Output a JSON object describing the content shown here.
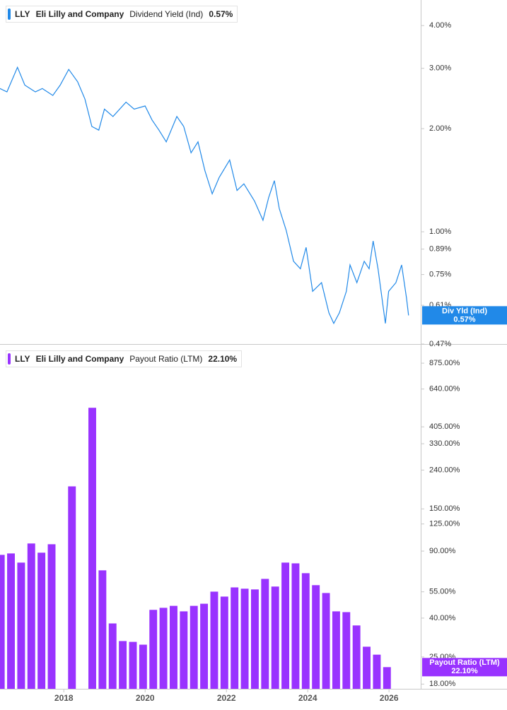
{
  "chart_data": [
    {
      "type": "line",
      "ticker": "LLY",
      "company": "Eli Lilly and Company",
      "current_label": "0.57%",
      "tag_label": "Div Yld (Ind)",
      "yscale": "log",
      "xlim": [
        2016.43,
        2026.78
      ],
      "ylim": [
        0.47,
        4.75
      ],
      "yticks": [
        {
          "value": 4,
          "label": "4.00%"
        },
        {
          "value": 3,
          "label": "3.00%"
        },
        {
          "value": 2,
          "label": "2.00%"
        },
        {
          "value": 1,
          "label": "1.00%"
        },
        {
          "value": 0.89,
          "label": "0.89%"
        },
        {
          "value": 0.75,
          "label": "0.75%"
        },
        {
          "value": 0.61,
          "label": "0.61%"
        },
        {
          "value": 0.47,
          "label": "0.47%"
        }
      ],
      "x": [
        2016.43,
        2016.6,
        2016.86,
        2017.04,
        2017.3,
        2017.47,
        2017.73,
        2017.91,
        2018.12,
        2018.34,
        2018.52,
        2018.69,
        2018.86,
        2019.0,
        2019.21,
        2019.53,
        2019.73,
        2020.0,
        2020.17,
        2020.34,
        2020.52,
        2020.78,
        2020.95,
        2021.13,
        2021.3,
        2021.47,
        2021.65,
        2021.82,
        2022.08,
        2022.26,
        2022.43,
        2022.69,
        2022.9,
        2023.04,
        2023.18,
        2023.3,
        2023.47,
        2023.65,
        2023.82,
        2023.96,
        2024.12,
        2024.34,
        2024.52,
        2024.64,
        2024.78,
        2024.95,
        2025.04,
        2025.21,
        2025.39,
        2025.51,
        2025.61,
        2025.73,
        2025.91,
        2025.99,
        2026.17,
        2026.31,
        2026.43,
        2026.48
      ],
      "series": [
        {
          "name": "Dividend Yield (Ind)",
          "color": "#2189e8",
          "values": [
            2.62,
            2.56,
            3.02,
            2.68,
            2.56,
            2.62,
            2.5,
            2.68,
            2.98,
            2.74,
            2.44,
            2.03,
            1.98,
            2.28,
            2.17,
            2.39,
            2.28,
            2.33,
            2.12,
            1.98,
            1.83,
            2.17,
            2.03,
            1.7,
            1.83,
            1.51,
            1.29,
            1.44,
            1.62,
            1.32,
            1.38,
            1.23,
            1.08,
            1.26,
            1.41,
            1.17,
            1.01,
            0.82,
            0.78,
            0.9,
            0.67,
            0.71,
            0.58,
            0.54,
            0.58,
            0.67,
            0.8,
            0.71,
            0.82,
            0.78,
            0.94,
            0.78,
            0.54,
            0.67,
            0.71,
            0.8,
            0.64,
            0.57
          ]
        }
      ]
    },
    {
      "type": "bar",
      "ticker": "LLY",
      "company": "Eli Lilly and Company",
      "current_label": "22.10%",
      "yscale": "log",
      "xlim": [
        2016.43,
        2026.78
      ],
      "ylim": [
        17,
        1075
      ],
      "xticks": [
        2018,
        2020,
        2022,
        2024,
        2026
      ],
      "yticks": [
        {
          "value": 875,
          "label": "875.00%"
        },
        {
          "value": 640,
          "label": "640.00%"
        },
        {
          "value": 405,
          "label": "405.00%"
        },
        {
          "value": 330,
          "label": "330.00%"
        },
        {
          "value": 240,
          "label": "240.00%"
        },
        {
          "value": 150,
          "label": "150.00%"
        },
        {
          "value": 125,
          "label": "125.00%"
        },
        {
          "value": 90,
          "label": "90.00%"
        },
        {
          "value": 55,
          "label": "55.00%"
        },
        {
          "value": 40,
          "label": "40.00%"
        },
        {
          "value": 25,
          "label": "25.00%"
        },
        {
          "value": 18,
          "label": "18.00%"
        }
      ],
      "x": [
        2016.45,
        2016.7,
        2016.95,
        2017.2,
        2017.45,
        2017.7,
        2017.95,
        2018.2,
        2018.45,
        2018.7,
        2018.95,
        2019.2,
        2019.45,
        2019.7,
        2019.95,
        2020.2,
        2020.45,
        2020.7,
        2020.95,
        2021.2,
        2021.45,
        2021.7,
        2021.95,
        2022.2,
        2022.45,
        2022.7,
        2022.95,
        2023.2,
        2023.45,
        2023.7,
        2023.95,
        2024.2,
        2024.45,
        2024.7,
        2024.95,
        2025.2,
        2025.45,
        2025.7,
        2025.95
      ],
      "series": [
        {
          "name": "Payout Ratio (LTM)",
          "color": "#9933ff",
          "values": [
            86.0,
            87.5,
            78.3,
            98.7,
            88.3,
            97.8,
            null,
            197,
            null,
            510,
            71.3,
            37.5,
            30.3,
            30.0,
            29.0,
            44.2,
            45.3,
            46.4,
            43.4,
            46.4,
            47.6,
            55.1,
            51.9,
            58.0,
            57.1,
            56.6,
            64.3,
            58.6,
            78.3,
            77.6,
            68.9,
            59.6,
            54.2,
            43.4,
            43.0,
            36.6,
            28.3,
            25.7,
            22.1
          ]
        }
      ]
    }
  ]
}
